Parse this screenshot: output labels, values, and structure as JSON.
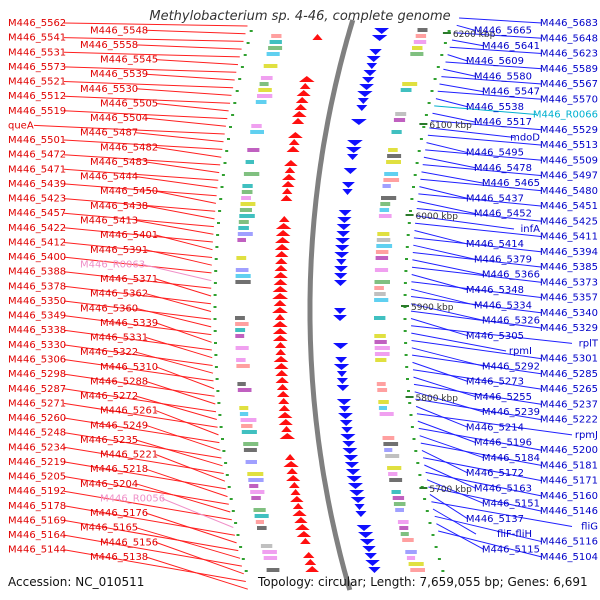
{
  "title": "Methylobacterium sp. 4-46, complete genome",
  "accession": "Accession: NC_010511",
  "topology": "Topology: circular; Length: 7,659,055 bp; Genes: 6,691",
  "kbp_ticks": [
    "6200 kbp",
    "6100 kbp",
    "6000 kbp",
    "5900 kbp",
    "5800 kbp",
    "5700 kbp"
  ],
  "colors": {
    "left_label": "#e00000",
    "right_label": "#0000c8",
    "rna_label": "#f090c8",
    "cyan_label": "#00b0d0",
    "left_line": "#ff2020",
    "right_line": "#2020ff",
    "backbone": "#808080"
  },
  "left_labels": [
    {
      "text": "M446_5562",
      "color": "left"
    },
    {
      "text": "M446_5548",
      "color": "left"
    },
    {
      "text": "M446_5541",
      "color": "left"
    },
    {
      "text": "M446_5558",
      "color": "left"
    },
    {
      "text": "M446_5531",
      "color": "left"
    },
    {
      "text": "M446_5545",
      "color": "left"
    },
    {
      "text": "M446_5573",
      "color": "left"
    },
    {
      "text": "M446_5539",
      "color": "left"
    },
    {
      "text": "M446_5521",
      "color": "left"
    },
    {
      "text": "M446_5530",
      "color": "left"
    },
    {
      "text": "M446_5512",
      "color": "left"
    },
    {
      "text": "M446_5505",
      "color": "left"
    },
    {
      "text": "M446_5519",
      "color": "left"
    },
    {
      "text": "M446_5504",
      "color": "left"
    },
    {
      "text": "queA",
      "color": "left"
    },
    {
      "text": "M446_5487",
      "color": "left"
    },
    {
      "text": "M446_5501",
      "color": "left"
    },
    {
      "text": "M446_5482",
      "color": "left"
    },
    {
      "text": "M446_5472",
      "color": "left"
    },
    {
      "text": "M446_5483",
      "color": "left"
    },
    {
      "text": "M446_5471",
      "color": "left"
    },
    {
      "text": "M446_5444",
      "color": "left"
    },
    {
      "text": "M446_5439",
      "color": "left"
    },
    {
      "text": "M446_5450",
      "color": "left"
    },
    {
      "text": "M446_5423",
      "color": "left"
    },
    {
      "text": "M446_5438",
      "color": "left"
    },
    {
      "text": "M446_5457",
      "color": "left"
    },
    {
      "text": "M446_5413",
      "color": "left"
    },
    {
      "text": "M446_5422",
      "color": "left"
    },
    {
      "text": "M446_5401",
      "color": "left"
    },
    {
      "text": "M446_5412",
      "color": "left"
    },
    {
      "text": "M446_5391",
      "color": "left"
    },
    {
      "text": "M446_5400",
      "color": "left"
    },
    {
      "text": "M446_R0063",
      "color": "rna"
    },
    {
      "text": "M446_5388",
      "color": "left"
    },
    {
      "text": "M446_5371",
      "color": "left"
    },
    {
      "text": "M446_5378",
      "color": "left"
    },
    {
      "text": "M446_5362",
      "color": "left"
    },
    {
      "text": "M446_5350",
      "color": "left"
    },
    {
      "text": "M446_5360",
      "color": "left"
    },
    {
      "text": "M446_5349",
      "color": "left"
    },
    {
      "text": "M446_5339",
      "color": "left"
    },
    {
      "text": "M446_5338",
      "color": "left"
    },
    {
      "text": "M446_5331",
      "color": "left"
    },
    {
      "text": "M446_5330",
      "color": "left"
    },
    {
      "text": "M446_5322",
      "color": "left"
    },
    {
      "text": "M446_5306",
      "color": "left"
    },
    {
      "text": "M446_5310",
      "color": "left"
    },
    {
      "text": "M446_5298",
      "color": "left"
    },
    {
      "text": "M446_5288",
      "color": "left"
    },
    {
      "text": "M446_5287",
      "color": "left"
    },
    {
      "text": "M446_5272",
      "color": "left"
    },
    {
      "text": "M446_5271",
      "color": "left"
    },
    {
      "text": "M446_5261",
      "color": "left"
    },
    {
      "text": "M446_5260",
      "color": "left"
    },
    {
      "text": "M446_5249",
      "color": "left"
    },
    {
      "text": "M446_5248",
      "color": "left"
    },
    {
      "text": "M446_5235",
      "color": "left"
    },
    {
      "text": "M446_5234",
      "color": "left"
    },
    {
      "text": "M446_5221",
      "color": "left"
    },
    {
      "text": "M446_5219",
      "color": "left"
    },
    {
      "text": "M446_5218",
      "color": "left"
    },
    {
      "text": "M446_5205",
      "color": "left"
    },
    {
      "text": "M446_5204",
      "color": "left"
    },
    {
      "text": "M446_5192",
      "color": "left"
    },
    {
      "text": "M446_R0056",
      "color": "rna"
    },
    {
      "text": "M446_5178",
      "color": "left"
    },
    {
      "text": "M446_5176",
      "color": "left"
    },
    {
      "text": "M446_5169",
      "color": "left"
    },
    {
      "text": "M446_5165",
      "color": "left"
    },
    {
      "text": "M446_5164",
      "color": "left"
    },
    {
      "text": "M446_5156",
      "color": "left"
    },
    {
      "text": "M446_5144",
      "color": "left"
    },
    {
      "text": "M446_5138",
      "color": "left"
    }
  ],
  "right_labels": [
    {
      "text": "M446_5683",
      "color": "right"
    },
    {
      "text": "M446_5665",
      "color": "right"
    },
    {
      "text": "M446_5648",
      "color": "right"
    },
    {
      "text": "M446_5641",
      "color": "right"
    },
    {
      "text": "M446_5623",
      "color": "right"
    },
    {
      "text": "M446_5609",
      "color": "right"
    },
    {
      "text": "M446_5589",
      "color": "right"
    },
    {
      "text": "M446_5580",
      "color": "right"
    },
    {
      "text": "M446_5567",
      "color": "right"
    },
    {
      "text": "M446_5547",
      "color": "right"
    },
    {
      "text": "M446_5570",
      "color": "right"
    },
    {
      "text": "M446_5538",
      "color": "right"
    },
    {
      "text": "M446_R0066",
      "color": "cyan"
    },
    {
      "text": "M446_5517",
      "color": "right"
    },
    {
      "text": "M446_5529",
      "color": "right"
    },
    {
      "text": "mdoD",
      "color": "right"
    },
    {
      "text": "M446_5513",
      "color": "right"
    },
    {
      "text": "M446_5495",
      "color": "right"
    },
    {
      "text": "M446_5509",
      "color": "right"
    },
    {
      "text": "M446_5478",
      "color": "right"
    },
    {
      "text": "M446_5497",
      "color": "right"
    },
    {
      "text": "M446_5465",
      "color": "right"
    },
    {
      "text": "M446_5480",
      "color": "right"
    },
    {
      "text": "M446_5437",
      "color": "right"
    },
    {
      "text": "M446_5451",
      "color": "right"
    },
    {
      "text": "M446_5452",
      "color": "right"
    },
    {
      "text": "M446_5425",
      "color": "right"
    },
    {
      "text": "infA",
      "color": "right"
    },
    {
      "text": "M446_5411",
      "color": "right"
    },
    {
      "text": "M446_5414",
      "color": "right"
    },
    {
      "text": "M446_5394",
      "color": "right"
    },
    {
      "text": "M446_5379",
      "color": "right"
    },
    {
      "text": "M446_5385",
      "color": "right"
    },
    {
      "text": "M446_5366",
      "color": "right"
    },
    {
      "text": "M446_5373",
      "color": "right"
    },
    {
      "text": "M446_5348",
      "color": "right"
    },
    {
      "text": "M446_5357",
      "color": "right"
    },
    {
      "text": "M446_5334",
      "color": "right"
    },
    {
      "text": "M446_5340",
      "color": "right"
    },
    {
      "text": "M446_5326",
      "color": "right"
    },
    {
      "text": "M446_5329",
      "color": "right"
    },
    {
      "text": "M446_5305",
      "color": "right"
    },
    {
      "text": "rplT",
      "color": "right"
    },
    {
      "text": "rpmI",
      "color": "right"
    },
    {
      "text": "M446_5301",
      "color": "right"
    },
    {
      "text": "M446_5292",
      "color": "right"
    },
    {
      "text": "M446_5285",
      "color": "right"
    },
    {
      "text": "M446_5273",
      "color": "right"
    },
    {
      "text": "M446_5265",
      "color": "right"
    },
    {
      "text": "M446_5255",
      "color": "right"
    },
    {
      "text": "M446_5237",
      "color": "right"
    },
    {
      "text": "M446_5239",
      "color": "right"
    },
    {
      "text": "M446_5222",
      "color": "right"
    },
    {
      "text": "M446_5214",
      "color": "right"
    },
    {
      "text": "rpmJ",
      "color": "right"
    },
    {
      "text": "M446_5196",
      "color": "right"
    },
    {
      "text": "M446_5200",
      "color": "right"
    },
    {
      "text": "M446_5184",
      "color": "right"
    },
    {
      "text": "M446_5181",
      "color": "right"
    },
    {
      "text": "M446_5172",
      "color": "right"
    },
    {
      "text": "M446_5171",
      "color": "right"
    },
    {
      "text": "M446_5163",
      "color": "right"
    },
    {
      "text": "M446_5160",
      "color": "right"
    },
    {
      "text": "M446_5151",
      "color": "right"
    },
    {
      "text": "M446_5146",
      "color": "right"
    },
    {
      "text": "M446_5137",
      "color": "right"
    },
    {
      "text": "fliG",
      "color": "right"
    },
    {
      "text": "fliF-fliH",
      "color": "right"
    },
    {
      "text": "M446_5116",
      "color": "right"
    },
    {
      "text": "M446_5115",
      "color": "right"
    },
    {
      "text": "M446_5104",
      "color": "right"
    }
  ]
}
